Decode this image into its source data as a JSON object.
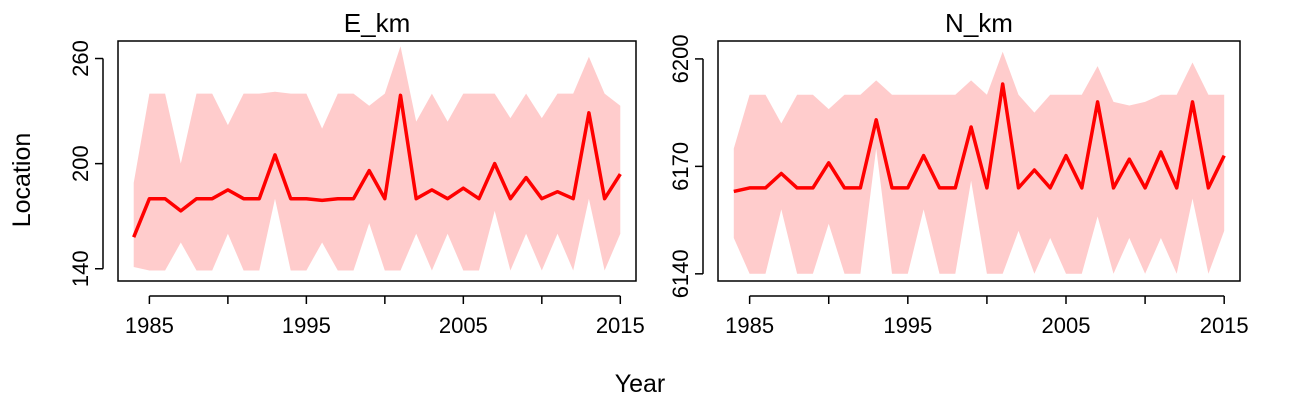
{
  "chart_data": {
    "type": "line",
    "xlabel": "Year",
    "ylabel": "Location",
    "colors": {
      "line": "#ff0000",
      "band": "#ffcccc",
      "frame": "#000000"
    },
    "panels": [
      {
        "title": "E_km",
        "xlim": [
          1983,
          2016
        ],
        "ylim": [
          133,
          270
        ],
        "xticks": [
          1985,
          1995,
          2005,
          2015
        ],
        "xtick_labels": [
          "1985",
          "1995",
          "2005",
          "2015"
        ],
        "xminor_ticks": [
          1990,
          2000,
          2010
        ],
        "yticks": [
          140,
          200,
          260
        ],
        "ytick_labels": [
          "140",
          "200",
          "260"
        ],
        "x": [
          1984,
          1985,
          1986,
          1987,
          1988,
          1989,
          1990,
          1991,
          1992,
          1993,
          1994,
          1995,
          1996,
          1997,
          1998,
          1999,
          2000,
          2001,
          2002,
          2003,
          2004,
          2005,
          2006,
          2007,
          2008,
          2009,
          2010,
          2011,
          2012,
          2013,
          2014,
          2015
        ],
        "series": [
          {
            "type": "line",
            "values": [
              158,
              180,
              180,
              173,
              180,
              180,
              185,
              180,
              180,
              205,
              180,
              180,
              179,
              180,
              180,
              196,
              180,
              239,
              180,
              185,
              180,
              186,
              180,
              200,
              180,
              192,
              180,
              184,
              180,
              229,
              180,
              194
            ]
          },
          {
            "type": "band",
            "lower": [
              141,
              139,
              139,
              155,
              139,
              139,
              160,
              139,
              139,
              180,
              139,
              139,
              155,
              139,
              139,
              166,
              139,
              139,
              160,
              139,
              160,
              139,
              139,
              173,
              139,
              160,
              139,
              160,
              139,
              180,
              139,
              160
            ],
            "upper": [
              189,
              240,
              240,
              200,
              240,
              240,
              222,
              240,
              240,
              241,
              240,
              240,
              220,
              240,
              240,
              233,
              240,
              267,
              224,
              240,
              224,
              240,
              240,
              240,
              226,
              240,
              226,
              240,
              240,
              261,
              240,
              233
            ]
          }
        ]
      },
      {
        "title": "N_km",
        "xlim": [
          1983,
          2016
        ],
        "ylim": [
          6138,
          6205
        ],
        "xticks": [
          1985,
          1995,
          2005,
          2015
        ],
        "xtick_labels": [
          "1985",
          "1995",
          "2005",
          "2015"
        ],
        "xminor_ticks": [
          1990,
          2000,
          2010
        ],
        "yticks": [
          6140,
          6170,
          6200
        ],
        "ytick_labels": [
          "6140",
          "6170",
          "6200"
        ],
        "x": [
          1984,
          1985,
          1986,
          1987,
          1988,
          1989,
          1990,
          1991,
          1992,
          1993,
          1994,
          1995,
          1996,
          1997,
          1998,
          1999,
          2000,
          2001,
          2002,
          2003,
          2004,
          2005,
          2006,
          2007,
          2008,
          2009,
          2010,
          2011,
          2012,
          2013,
          2014,
          2015
        ],
        "series": [
          {
            "type": "line",
            "values": [
              6163,
              6164,
              6164,
              6168,
              6164,
              6164,
              6171,
              6164,
              6164,
              6183,
              6164,
              6164,
              6173,
              6164,
              6164,
              6181,
              6164,
              6193,
              6164,
              6169,
              6164,
              6173,
              6164,
              6188,
              6164,
              6172,
              6164,
              6174,
              6164,
              6188,
              6164,
              6173
            ]
          },
          {
            "type": "band",
            "lower": [
              6150,
              6140,
              6140,
              6158,
              6140,
              6140,
              6154,
              6140,
              6140,
              6175,
              6140,
              6140,
              6158,
              6140,
              6140,
              6166,
              6140,
              6140,
              6152,
              6140,
              6150,
              6140,
              6140,
              6156,
              6140,
              6150,
              6140,
              6150,
              6140,
              6161,
              6140,
              6152
            ],
            "upper": [
              6175,
              6190,
              6190,
              6182,
              6190,
              6190,
              6186,
              6190,
              6190,
              6194,
              6190,
              6190,
              6190,
              6190,
              6190,
              6194,
              6190,
              6202,
              6190,
              6185,
              6190,
              6190,
              6190,
              6198,
              6188,
              6187,
              6188,
              6190,
              6190,
              6199,
              6190,
              6190
            ]
          }
        ]
      }
    ]
  }
}
